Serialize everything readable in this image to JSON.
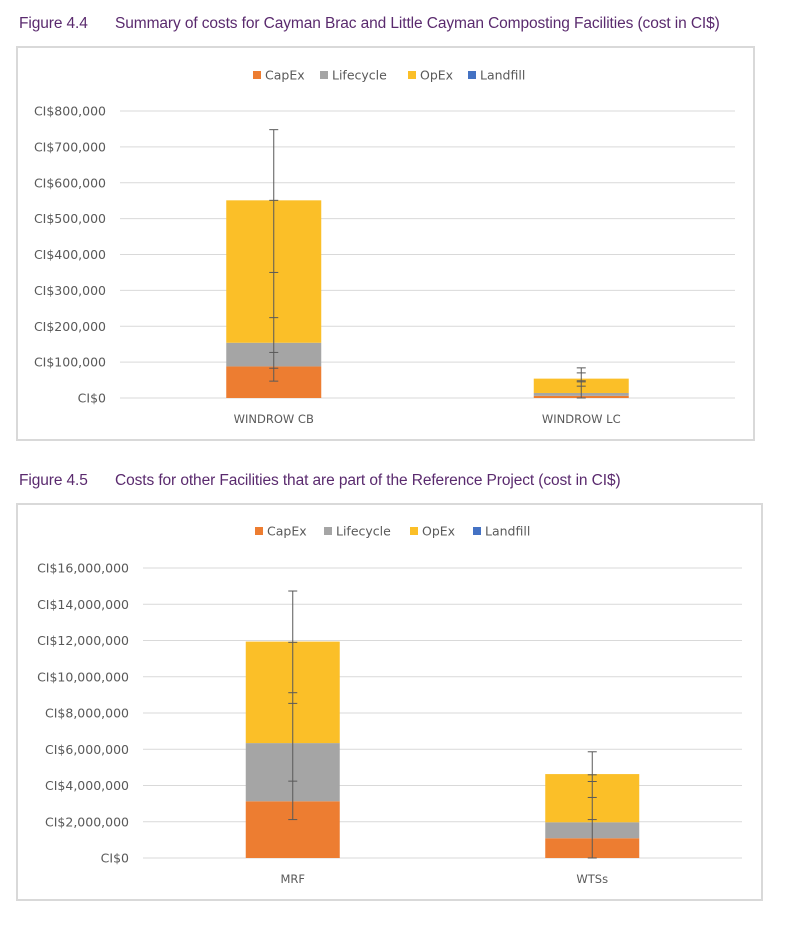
{
  "figures": [
    {
      "number": "Figure 4.4",
      "caption": "Summary of costs for Cayman Brac and Little Cayman Composting Facilities (cost in CI$)"
    },
    {
      "number": "Figure 4.5",
      "caption": "Costs for other Facilities that are part of the Reference Project (cost in CI$)"
    }
  ],
  "colors": {
    "CapEx": "#ed7d31",
    "Lifecycle": "#a5a5a5",
    "OpEx": "#fbbf28",
    "Landfill": "#4472c4",
    "gridline": "#d9d9d9",
    "error_bar": "#595959",
    "caption": "#5a2a6e"
  },
  "chart_data": [
    {
      "type": "bar",
      "stacked": true,
      "title": "",
      "xlabel": "",
      "ylabel": "",
      "legend": [
        "CapEx",
        "Lifecycle",
        "OpEx",
        "Landfill"
      ],
      "legend_position": "top",
      "grid": true,
      "categories": [
        "WINDROW CB",
        "WINDROW LC"
      ],
      "series": [
        {
          "name": "CapEx",
          "values": [
            88000,
            6000
          ]
        },
        {
          "name": "Lifecycle",
          "values": [
            66000,
            8000
          ]
        },
        {
          "name": "OpEx",
          "values": [
            397000,
            40000
          ]
        },
        {
          "name": "Landfill",
          "values": [
            0,
            0
          ]
        }
      ],
      "error_bars": [
        [
          47000,
          83000,
          127000,
          224000,
          350000,
          551000,
          748000
        ],
        [
          0,
          33000,
          45000,
          48000,
          70000,
          84000
        ]
      ],
      "ylim": [
        0,
        800000
      ],
      "yticks": [
        0,
        100000,
        200000,
        300000,
        400000,
        500000,
        600000,
        700000,
        800000
      ],
      "ytick_labels": [
        "CI$0",
        "CI$100,000",
        "CI$200,000",
        "CI$300,000",
        "CI$400,000",
        "CI$500,000",
        "CI$600,000",
        "CI$700,000",
        "CI$800,000"
      ]
    },
    {
      "type": "bar",
      "stacked": true,
      "title": "",
      "xlabel": "",
      "ylabel": "",
      "legend": [
        "CapEx",
        "Lifecycle",
        "OpEx",
        "Landfill"
      ],
      "legend_position": "top",
      "grid": true,
      "categories": [
        "MRF",
        "WTSs"
      ],
      "series": [
        {
          "name": "CapEx",
          "values": [
            3130000,
            1090000
          ]
        },
        {
          "name": "Lifecycle",
          "values": [
            3210000,
            880000
          ]
        },
        {
          "name": "OpEx",
          "values": [
            5600000,
            2660000
          ]
        },
        {
          "name": "Landfill",
          "values": [
            0,
            0
          ]
        }
      ],
      "error_bars": [
        [
          2120000,
          4240000,
          8530000,
          9120000,
          11900000,
          14730000
        ],
        [
          0,
          2120000,
          3340000,
          4220000,
          4590000,
          5860000
        ]
      ],
      "ylim": [
        0,
        16000000
      ],
      "yticks": [
        0,
        2000000,
        4000000,
        6000000,
        8000000,
        10000000,
        12000000,
        14000000,
        16000000
      ],
      "ytick_labels": [
        "CI$0",
        "CI$2,000,000",
        "CI$4,000,000",
        "CI$6,000,000",
        "CI$8,000,000",
        "CI$10,000,000",
        "CI$12,000,000",
        "CI$14,000,000",
        "CI$16,000,000"
      ]
    }
  ]
}
